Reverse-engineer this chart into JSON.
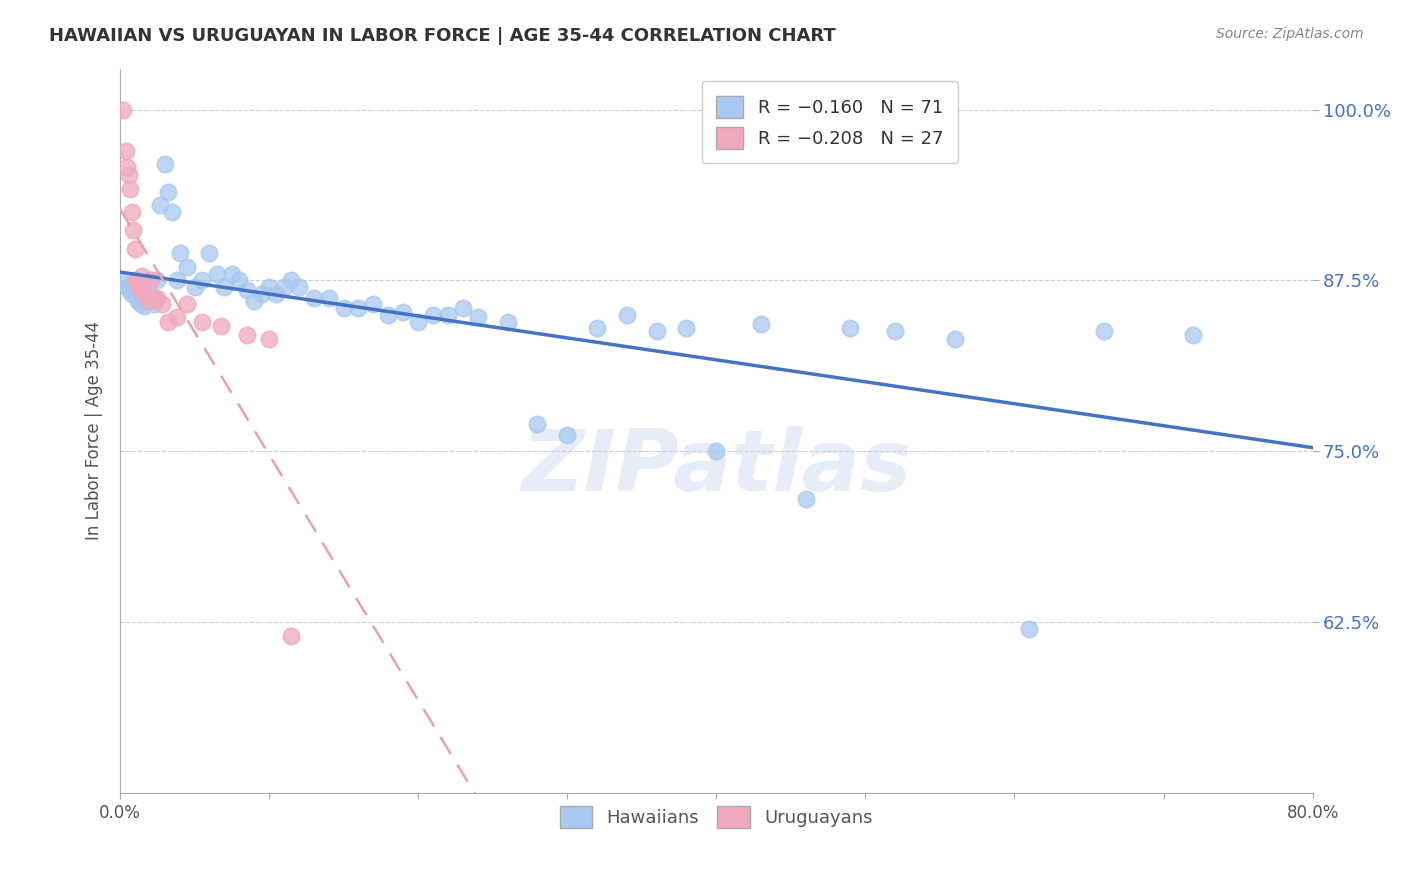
{
  "title": "HAWAIIAN VS URUGUAYAN IN LABOR FORCE | AGE 35-44 CORRELATION CHART",
  "source": "Source: ZipAtlas.com",
  "ylabel": "In Labor Force | Age 35-44",
  "xlim": [
    0.0,
    0.8
  ],
  "ylim": [
    0.5,
    1.03
  ],
  "yticks": [
    0.625,
    0.75,
    0.875,
    1.0
  ],
  "ytick_labels": [
    "62.5%",
    "75.0%",
    "87.5%",
    "100.0%"
  ],
  "xticks": [
    0.0,
    0.1,
    0.2,
    0.3,
    0.4,
    0.5,
    0.6,
    0.7,
    0.8
  ],
  "xtick_labels": [
    "0.0%",
    "",
    "",
    "",
    "",
    "",
    "",
    "",
    "80.0%"
  ],
  "hawaiian_color": "#a8c8f0",
  "uruguayan_color": "#f0a8bc",
  "hawaiian_line_color": "#4472c4",
  "uruguayan_line_color": "#e8a0b0",
  "watermark": "ZIPatlas",
  "hawaiian_x": [
    0.003,
    0.005,
    0.006,
    0.007,
    0.008,
    0.009,
    0.01,
    0.011,
    0.012,
    0.013,
    0.014,
    0.015,
    0.016,
    0.017,
    0.018,
    0.019,
    0.02,
    0.021,
    0.022,
    0.023,
    0.025,
    0.027,
    0.03,
    0.032,
    0.035,
    0.038,
    0.04,
    0.045,
    0.05,
    0.055,
    0.06,
    0.065,
    0.07,
    0.075,
    0.08,
    0.085,
    0.09,
    0.095,
    0.1,
    0.105,
    0.11,
    0.115,
    0.12,
    0.13,
    0.14,
    0.15,
    0.16,
    0.17,
    0.18,
    0.19,
    0.2,
    0.21,
    0.22,
    0.23,
    0.24,
    0.26,
    0.28,
    0.3,
    0.32,
    0.34,
    0.36,
    0.38,
    0.4,
    0.43,
    0.46,
    0.49,
    0.52,
    0.56,
    0.61,
    0.66,
    0.72
  ],
  "hawaiian_y": [
    0.875,
    0.87,
    0.868,
    0.872,
    0.865,
    0.87,
    0.866,
    0.868,
    0.86,
    0.865,
    0.858,
    0.862,
    0.856,
    0.87,
    0.86,
    0.868,
    0.862,
    0.875,
    0.86,
    0.858,
    0.875,
    0.93,
    0.96,
    0.94,
    0.925,
    0.875,
    0.895,
    0.885,
    0.87,
    0.875,
    0.895,
    0.88,
    0.87,
    0.88,
    0.875,
    0.868,
    0.86,
    0.865,
    0.87,
    0.865,
    0.87,
    0.875,
    0.87,
    0.862,
    0.862,
    0.855,
    0.855,
    0.858,
    0.85,
    0.852,
    0.845,
    0.85,
    0.85,
    0.855,
    0.848,
    0.845,
    0.77,
    0.762,
    0.84,
    0.85,
    0.838,
    0.84,
    0.75,
    0.843,
    0.715,
    0.84,
    0.838,
    0.832,
    0.62,
    0.838,
    0.835
  ],
  "uruguayan_x": [
    0.002,
    0.004,
    0.005,
    0.006,
    0.007,
    0.008,
    0.009,
    0.01,
    0.011,
    0.012,
    0.013,
    0.014,
    0.015,
    0.017,
    0.019,
    0.021,
    0.023,
    0.025,
    0.028,
    0.032,
    0.038,
    0.045,
    0.055,
    0.068,
    0.085,
    0.1,
    0.115
  ],
  "uruguayan_y": [
    1.0,
    0.97,
    0.958,
    0.952,
    0.942,
    0.925,
    0.912,
    0.898,
    0.875,
    0.872,
    0.87,
    0.868,
    0.878,
    0.865,
    0.86,
    0.875,
    0.862,
    0.862,
    0.858,
    0.845,
    0.848,
    0.858,
    0.845,
    0.842,
    0.835,
    0.832,
    0.615
  ]
}
